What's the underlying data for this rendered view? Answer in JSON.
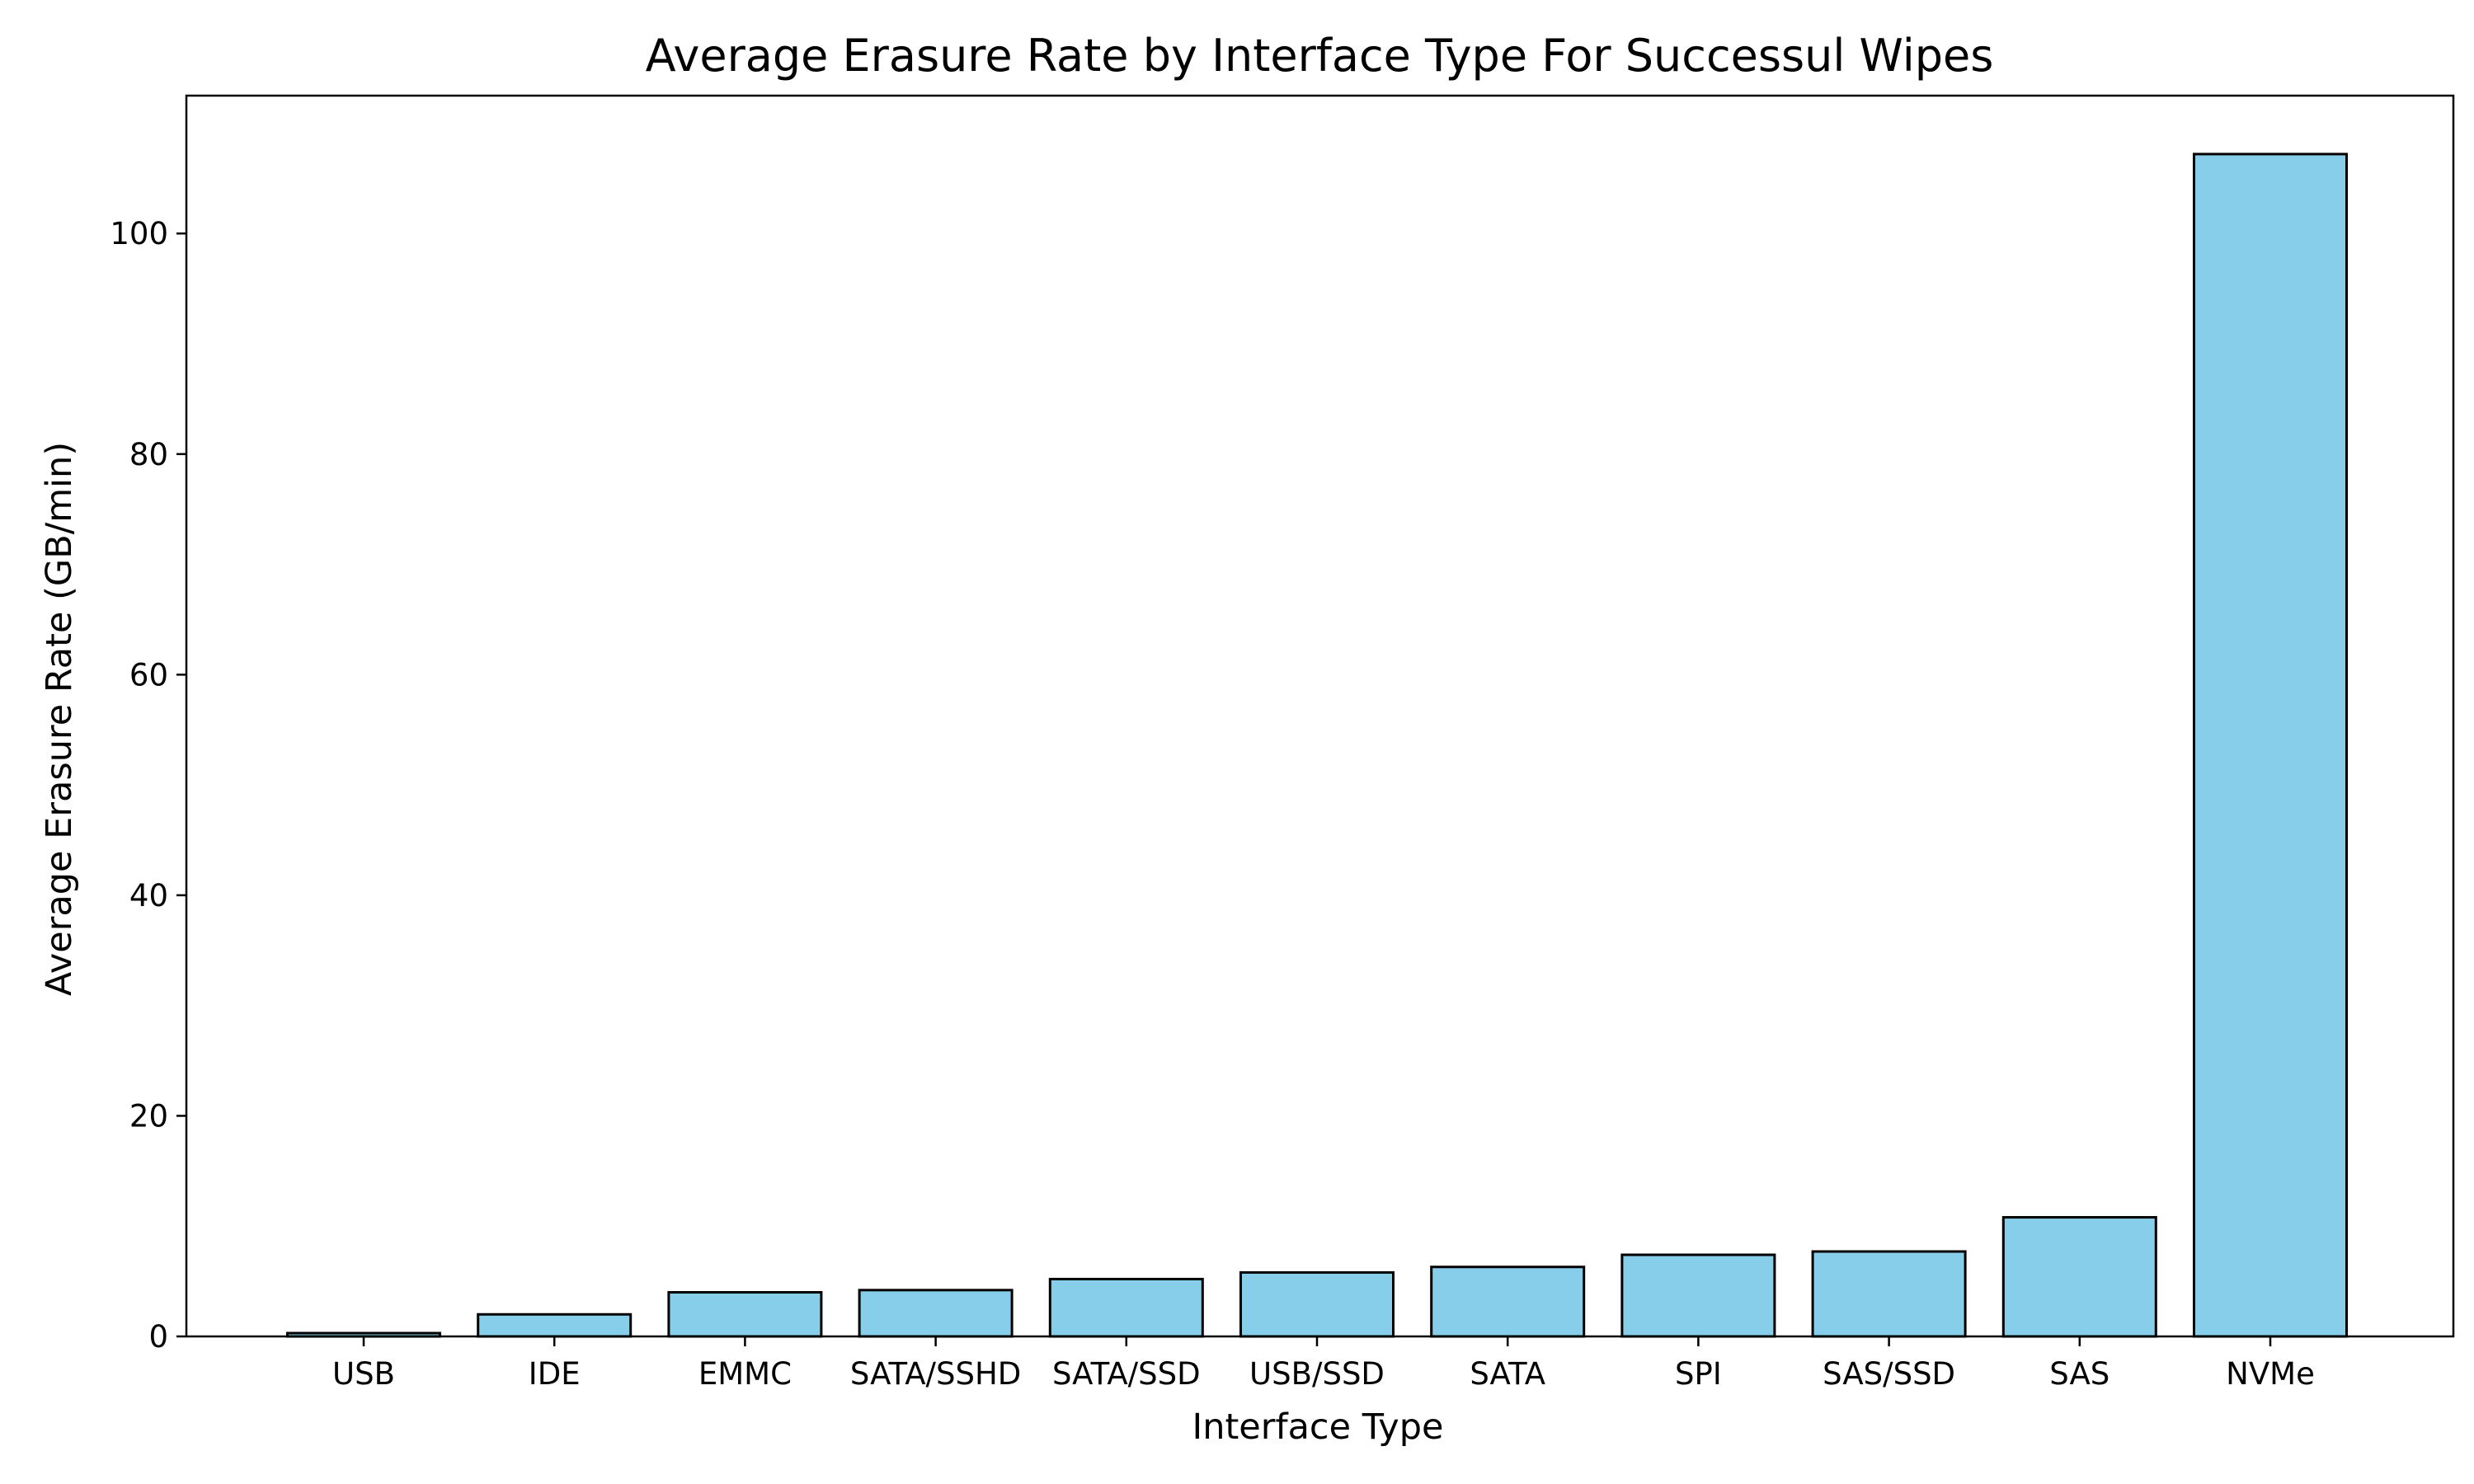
{
  "chart_data": {
    "type": "bar",
    "title": "Average Erasure Rate by Interface Type For Successul Wipes",
    "xlabel": "Interface Type",
    "ylabel": "Average Erasure Rate (GB/min)",
    "categories": [
      "USB",
      "IDE",
      "EMMC",
      "SATA/SSHD",
      "SATA/SSD",
      "USB/SSD",
      "SATA",
      "SPI",
      "SAS/SSD",
      "SAS",
      "NVMe"
    ],
    "values": [
      0.3,
      2.0,
      4.0,
      4.2,
      5.2,
      5.8,
      6.3,
      7.4,
      7.7,
      10.8,
      107.2
    ],
    "ylim": [
      0,
      112.5
    ],
    "yticks": [
      0,
      20,
      40,
      60,
      80,
      100
    ],
    "grid": false,
    "legend": false,
    "colors": {
      "bar_fill": "#87ceeb",
      "bar_edge": "#000000",
      "axes": "#000000"
    }
  }
}
